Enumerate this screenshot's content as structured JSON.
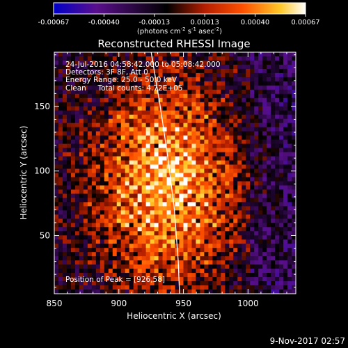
{
  "chart_data": {
    "type": "heatmap",
    "title": "Reconstructed RHESSI Image",
    "xlabel": "Heliocentric X (arcsec)",
    "ylabel": "Heliocentric Y (arcsec)",
    "xlim": [
      850,
      1037
    ],
    "ylim": [
      5,
      192
    ],
    "x_ticks": [
      850,
      900,
      950,
      1000
    ],
    "y_ticks": [
      50,
      100,
      150
    ],
    "colorbar": {
      "ticks": [
        "-0.00067",
        "-0.00040",
        "-0.00013",
        "0.00013",
        "0.00040",
        "0.00067"
      ],
      "label_main": "(photons cm",
      "label_exp1": "-2",
      "label_mid": " s",
      "label_exp2": "-1",
      "label_tail": " asec",
      "label_exp3": "-2",
      "label_close": ")",
      "range": [
        -0.00067,
        0.00067
      ],
      "colors": [
        "#0000c8",
        "#5a0f8c",
        "#000000",
        "#b41e00",
        "#ff5000",
        "#ffc828",
        "#ffffff"
      ]
    },
    "annotations": {
      "line1": "24-Jul-2016 04:58:42.000 to 05:08:42.000",
      "line2": "Detectors: 3F 8F, Att 0",
      "line3": "Energy Range: 25.0 - 50.0 keV",
      "line4": "Clean     Total counts: 4.72E+05",
      "peak": "Position of Peak = [926,58]"
    },
    "peak": [
      926,
      58
    ],
    "limb_curve": [
      [
        925,
        192
      ],
      [
        932,
        150
      ],
      [
        938,
        110
      ],
      [
        943,
        70
      ],
      [
        946,
        30
      ],
      [
        947,
        5
      ]
    ]
  },
  "footer": {
    "timestamp": "9-Nov-2017 02:57"
  }
}
